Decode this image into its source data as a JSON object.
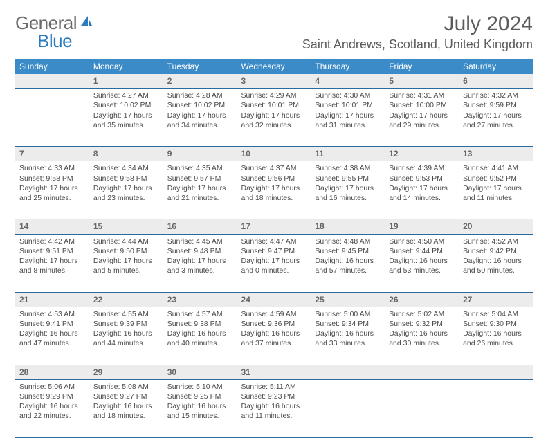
{
  "logo": {
    "general": "General",
    "blue": "Blue"
  },
  "title": {
    "month": "July 2024",
    "location": "Saint Andrews, Scotland, United Kingdom"
  },
  "colors": {
    "header_bg": "#3b8bc8",
    "header_text": "#ffffff",
    "border": "#2b6aa0",
    "daynum_bg": "#ececec",
    "text": "#4a4a4a",
    "logo_gray": "#6b6b6b",
    "logo_blue": "#2b7bbd"
  },
  "weekdays": [
    "Sunday",
    "Monday",
    "Tuesday",
    "Wednesday",
    "Thursday",
    "Friday",
    "Saturday"
  ],
  "weeks": [
    {
      "nums": [
        "",
        "1",
        "2",
        "3",
        "4",
        "5",
        "6"
      ],
      "cells": [
        null,
        {
          "sunrise": "Sunrise: 4:27 AM",
          "sunset": "Sunset: 10:02 PM",
          "d1": "Daylight: 17 hours",
          "d2": "and 35 minutes."
        },
        {
          "sunrise": "Sunrise: 4:28 AM",
          "sunset": "Sunset: 10:02 PM",
          "d1": "Daylight: 17 hours",
          "d2": "and 34 minutes."
        },
        {
          "sunrise": "Sunrise: 4:29 AM",
          "sunset": "Sunset: 10:01 PM",
          "d1": "Daylight: 17 hours",
          "d2": "and 32 minutes."
        },
        {
          "sunrise": "Sunrise: 4:30 AM",
          "sunset": "Sunset: 10:01 PM",
          "d1": "Daylight: 17 hours",
          "d2": "and 31 minutes."
        },
        {
          "sunrise": "Sunrise: 4:31 AM",
          "sunset": "Sunset: 10:00 PM",
          "d1": "Daylight: 17 hours",
          "d2": "and 29 minutes."
        },
        {
          "sunrise": "Sunrise: 4:32 AM",
          "sunset": "Sunset: 9:59 PM",
          "d1": "Daylight: 17 hours",
          "d2": "and 27 minutes."
        }
      ]
    },
    {
      "nums": [
        "7",
        "8",
        "9",
        "10",
        "11",
        "12",
        "13"
      ],
      "cells": [
        {
          "sunrise": "Sunrise: 4:33 AM",
          "sunset": "Sunset: 9:58 PM",
          "d1": "Daylight: 17 hours",
          "d2": "and 25 minutes."
        },
        {
          "sunrise": "Sunrise: 4:34 AM",
          "sunset": "Sunset: 9:58 PM",
          "d1": "Daylight: 17 hours",
          "d2": "and 23 minutes."
        },
        {
          "sunrise": "Sunrise: 4:35 AM",
          "sunset": "Sunset: 9:57 PM",
          "d1": "Daylight: 17 hours",
          "d2": "and 21 minutes."
        },
        {
          "sunrise": "Sunrise: 4:37 AM",
          "sunset": "Sunset: 9:56 PM",
          "d1": "Daylight: 17 hours",
          "d2": "and 18 minutes."
        },
        {
          "sunrise": "Sunrise: 4:38 AM",
          "sunset": "Sunset: 9:55 PM",
          "d1": "Daylight: 17 hours",
          "d2": "and 16 minutes."
        },
        {
          "sunrise": "Sunrise: 4:39 AM",
          "sunset": "Sunset: 9:53 PM",
          "d1": "Daylight: 17 hours",
          "d2": "and 14 minutes."
        },
        {
          "sunrise": "Sunrise: 4:41 AM",
          "sunset": "Sunset: 9:52 PM",
          "d1": "Daylight: 17 hours",
          "d2": "and 11 minutes."
        }
      ]
    },
    {
      "nums": [
        "14",
        "15",
        "16",
        "17",
        "18",
        "19",
        "20"
      ],
      "cells": [
        {
          "sunrise": "Sunrise: 4:42 AM",
          "sunset": "Sunset: 9:51 PM",
          "d1": "Daylight: 17 hours",
          "d2": "and 8 minutes."
        },
        {
          "sunrise": "Sunrise: 4:44 AM",
          "sunset": "Sunset: 9:50 PM",
          "d1": "Daylight: 17 hours",
          "d2": "and 5 minutes."
        },
        {
          "sunrise": "Sunrise: 4:45 AM",
          "sunset": "Sunset: 9:48 PM",
          "d1": "Daylight: 17 hours",
          "d2": "and 3 minutes."
        },
        {
          "sunrise": "Sunrise: 4:47 AM",
          "sunset": "Sunset: 9:47 PM",
          "d1": "Daylight: 17 hours",
          "d2": "and 0 minutes."
        },
        {
          "sunrise": "Sunrise: 4:48 AM",
          "sunset": "Sunset: 9:45 PM",
          "d1": "Daylight: 16 hours",
          "d2": "and 57 minutes."
        },
        {
          "sunrise": "Sunrise: 4:50 AM",
          "sunset": "Sunset: 9:44 PM",
          "d1": "Daylight: 16 hours",
          "d2": "and 53 minutes."
        },
        {
          "sunrise": "Sunrise: 4:52 AM",
          "sunset": "Sunset: 9:42 PM",
          "d1": "Daylight: 16 hours",
          "d2": "and 50 minutes."
        }
      ]
    },
    {
      "nums": [
        "21",
        "22",
        "23",
        "24",
        "25",
        "26",
        "27"
      ],
      "cells": [
        {
          "sunrise": "Sunrise: 4:53 AM",
          "sunset": "Sunset: 9:41 PM",
          "d1": "Daylight: 16 hours",
          "d2": "and 47 minutes."
        },
        {
          "sunrise": "Sunrise: 4:55 AM",
          "sunset": "Sunset: 9:39 PM",
          "d1": "Daylight: 16 hours",
          "d2": "and 44 minutes."
        },
        {
          "sunrise": "Sunrise: 4:57 AM",
          "sunset": "Sunset: 9:38 PM",
          "d1": "Daylight: 16 hours",
          "d2": "and 40 minutes."
        },
        {
          "sunrise": "Sunrise: 4:59 AM",
          "sunset": "Sunset: 9:36 PM",
          "d1": "Daylight: 16 hours",
          "d2": "and 37 minutes."
        },
        {
          "sunrise": "Sunrise: 5:00 AM",
          "sunset": "Sunset: 9:34 PM",
          "d1": "Daylight: 16 hours",
          "d2": "and 33 minutes."
        },
        {
          "sunrise": "Sunrise: 5:02 AM",
          "sunset": "Sunset: 9:32 PM",
          "d1": "Daylight: 16 hours",
          "d2": "and 30 minutes."
        },
        {
          "sunrise": "Sunrise: 5:04 AM",
          "sunset": "Sunset: 9:30 PM",
          "d1": "Daylight: 16 hours",
          "d2": "and 26 minutes."
        }
      ]
    },
    {
      "nums": [
        "28",
        "29",
        "30",
        "31",
        "",
        "",
        ""
      ],
      "cells": [
        {
          "sunrise": "Sunrise: 5:06 AM",
          "sunset": "Sunset: 9:29 PM",
          "d1": "Daylight: 16 hours",
          "d2": "and 22 minutes."
        },
        {
          "sunrise": "Sunrise: 5:08 AM",
          "sunset": "Sunset: 9:27 PM",
          "d1": "Daylight: 16 hours",
          "d2": "and 18 minutes."
        },
        {
          "sunrise": "Sunrise: 5:10 AM",
          "sunset": "Sunset: 9:25 PM",
          "d1": "Daylight: 16 hours",
          "d2": "and 15 minutes."
        },
        {
          "sunrise": "Sunrise: 5:11 AM",
          "sunset": "Sunset: 9:23 PM",
          "d1": "Daylight: 16 hours",
          "d2": "and 11 minutes."
        },
        null,
        null,
        null
      ]
    }
  ]
}
